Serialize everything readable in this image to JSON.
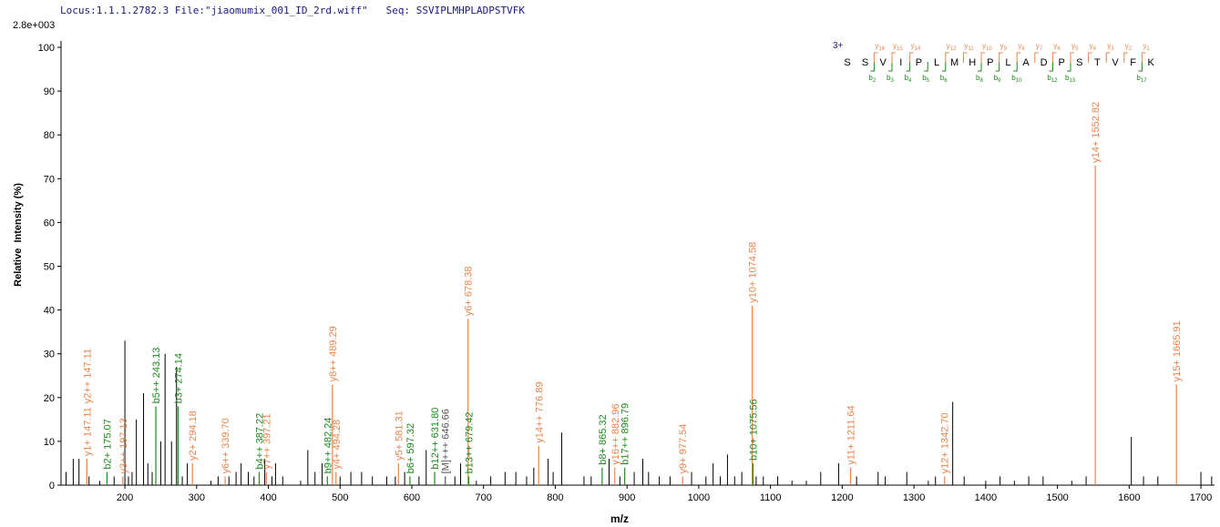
{
  "chart_data": {
    "type": "spectrum",
    "header": "Locus:1.1.1.2782.3 File:\"jiaomumix_001_ID_2rd.wiff\"   Seq: SSVIPLMHPLADPSTVFK",
    "scale_label": "2.8e+003",
    "x_label": "m/z",
    "y_label": "Relative  Intensity (%)",
    "xlim": [
      111,
      1719
    ],
    "ylim": [
      0,
      100
    ],
    "xticks": [
      200,
      300,
      400,
      500,
      600,
      700,
      800,
      900,
      1000,
      1100,
      1200,
      1300,
      1400,
      1500,
      1600,
      1700
    ],
    "yticks": [
      0,
      10,
      20,
      30,
      40,
      50,
      60,
      70,
      80,
      90,
      100
    ],
    "peak_color": "#000000",
    "peaks": {
      "mz": [
        111,
        118,
        128,
        136,
        150,
        165,
        185,
        200,
        205,
        210,
        216,
        226,
        232,
        238,
        250,
        256,
        265,
        272,
        280,
        287,
        320,
        330,
        345,
        355,
        362,
        372,
        380,
        395,
        405,
        410,
        420,
        445,
        455,
        465,
        475,
        500,
        515,
        530,
        545,
        565,
        577,
        590,
        610,
        620,
        660,
        668,
        690,
        710,
        730,
        745,
        760,
        770,
        790,
        797,
        809,
        840,
        850,
        875,
        890,
        910,
        922,
        930,
        945,
        960,
        990,
        1010,
        1020,
        1030,
        1040,
        1050,
        1060,
        1080,
        1090,
        1110,
        1130,
        1150,
        1170,
        1195,
        1220,
        1250,
        1260,
        1290,
        1320,
        1330,
        1354,
        1370,
        1400,
        1420,
        1440,
        1460,
        1480,
        1520,
        1540,
        1603,
        1620,
        1640,
        1700,
        1715
      ],
      "intensity": [
        4,
        3,
        6,
        6,
        2,
        1,
        2,
        33,
        2,
        3,
        15,
        21,
        5,
        3,
        10,
        30,
        10,
        27,
        2,
        5,
        1,
        2,
        2,
        3,
        5,
        3,
        2,
        6,
        2,
        5,
        2,
        1,
        8,
        3,
        5,
        2,
        3,
        3,
        2,
        2,
        2,
        3,
        2,
        8,
        2,
        5,
        1,
        2,
        3,
        3,
        2,
        4,
        6,
        3,
        12,
        2,
        2,
        6,
        2,
        3,
        6,
        3,
        2,
        2,
        3,
        2,
        5,
        2,
        7,
        2,
        3,
        2,
        2,
        2,
        1,
        1,
        3,
        5,
        2,
        3,
        2,
        3,
        1,
        2,
        19,
        2,
        1,
        2,
        1,
        2,
        2,
        1,
        2,
        11,
        2,
        2,
        3,
        2
      ]
    },
    "annotations": [
      {
        "label": "y1+ 147.11",
        "mz": 147.11,
        "intensity": 6,
        "color": "#e8844a"
      },
      {
        "label": "y2++ 147.11",
        "mz": 147.11,
        "intensity": 6,
        "color": "#e8844a"
      },
      {
        "label": "b2+ 175.07",
        "mz": 175.07,
        "intensity": 3,
        "color": "#1a8a1a"
      },
      {
        "label": "y3++ 197.13",
        "mz": 197.13,
        "intensity": 2,
        "color": "#e8844a"
      },
      {
        "label": "b5++ 243.13",
        "mz": 243.13,
        "intensity": 18,
        "color": "#1a8a1a"
      },
      {
        "label": "b3+ 274.14",
        "mz": 274.14,
        "intensity": 18,
        "color": "#1a8a1a"
      },
      {
        "label": "y2+ 294.18",
        "mz": 294.18,
        "intensity": 5,
        "color": "#e8844a"
      },
      {
        "label": "y6++ 339.70",
        "mz": 339.7,
        "intensity": 2,
        "color": "#e8844a"
      },
      {
        "label": "b4++ 387.22",
        "mz": 387.22,
        "intensity": 3,
        "color": "#1a8a1a"
      },
      {
        "label": "y7++ 397.21",
        "mz": 397.21,
        "intensity": 3,
        "color": "#e8844a"
      },
      {
        "label": "b9++ 482.24",
        "mz": 482.24,
        "intensity": 2,
        "color": "#1a8a1a"
      },
      {
        "label": "y8++ 489.29",
        "mz": 489.29,
        "intensity": 23,
        "color": "#e8844a"
      },
      {
        "label": "y4+ 494.28",
        "mz": 494.28,
        "intensity": 3,
        "color": "#e8844a"
      },
      {
        "label": "y5+ 581.31",
        "mz": 581.31,
        "intensity": 5,
        "color": "#e8844a"
      },
      {
        "label": "b6+ 597.32",
        "mz": 597.32,
        "intensity": 2,
        "color": "#1a8a1a"
      },
      {
        "label": "b12++ 631.80",
        "mz": 631.8,
        "intensity": 3,
        "color": "#1a8a1a"
      },
      {
        "label": "[M]+++ 646.66",
        "mz": 646.66,
        "intensity": 2,
        "color": "#555555"
      },
      {
        "label": "y6+ 678.38",
        "mz": 678.38,
        "intensity": 38,
        "color": "#e8844a"
      },
      {
        "label": "b13++ 679.42",
        "mz": 679.42,
        "intensity": 2,
        "color": "#1a8a1a"
      },
      {
        "label": "y14++ 776.89",
        "mz": 776.89,
        "intensity": 9,
        "color": "#e8844a"
      },
      {
        "label": "b8+ 865.32",
        "mz": 865.32,
        "intensity": 4,
        "color": "#1a8a1a"
      },
      {
        "label": "y16++ 882.96",
        "mz": 882.96,
        "intensity": 4,
        "color": "#e8844a"
      },
      {
        "label": "b17++ 896.79",
        "mz": 896.79,
        "intensity": 4,
        "color": "#1a8a1a"
      },
      {
        "label": "y9+ 977.54",
        "mz": 977.54,
        "intensity": 2,
        "color": "#e8844a"
      },
      {
        "label": "y10+ 1074.58",
        "mz": 1074.58,
        "intensity": 41,
        "color": "#e8844a"
      },
      {
        "label": "b10+ 1075.56",
        "mz": 1075.56,
        "intensity": 5,
        "color": "#1a8a1a"
      },
      {
        "label": "y11+ 1211.64",
        "mz": 1211.64,
        "intensity": 4,
        "color": "#e8844a"
      },
      {
        "label": "y12+ 1342.70",
        "mz": 1342.7,
        "intensity": 2,
        "color": "#e8844a"
      },
      {
        "label": "y14+ 1552.82",
        "mz": 1552.82,
        "intensity": 73,
        "color": "#e8844a"
      },
      {
        "label": "y15+ 1665.91",
        "mz": 1665.91,
        "intensity": 23,
        "color": "#e8844a"
      }
    ],
    "ladder": {
      "charge": "3+",
      "sequence": [
        "S",
        "S",
        "V",
        "I",
        "P",
        "L",
        "M",
        "H",
        "P",
        "L",
        "A",
        "D",
        "P",
        "S",
        "T",
        "V",
        "F",
        "K"
      ],
      "b_label": "b",
      "y_label": "y",
      "b_ions": [
        2,
        3,
        4,
        5,
        6,
        8,
        9,
        10,
        12,
        13,
        17
      ],
      "y_ions": [
        16,
        15,
        14,
        12,
        11,
        10,
        9,
        8,
        7,
        6,
        5,
        4,
        3,
        2,
        1
      ],
      "b_color": "#1a8a1a",
      "y_color": "#e8844a"
    }
  }
}
